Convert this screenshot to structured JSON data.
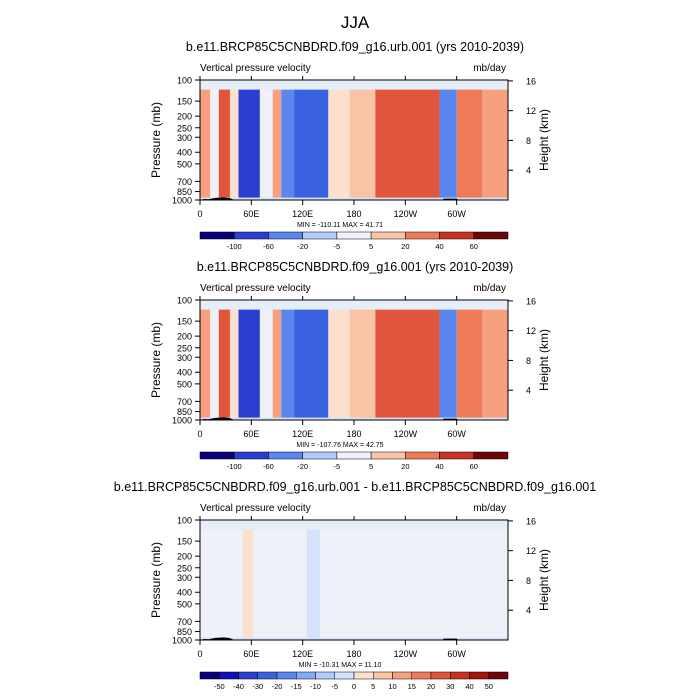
{
  "page_title": "JJA",
  "colors": {
    "palette": [
      "#08007a",
      "#1010b8",
      "#2a3fd0",
      "#3a62e0",
      "#5a86ef",
      "#86aaf5",
      "#b3cbfa",
      "#d4e3fb",
      "#eef2f8",
      "#fbe0ce",
      "#fbc3a5",
      "#f7a07f",
      "#ef7a58",
      "#e0553c",
      "#c8321f",
      "#a3140e",
      "#6e0606"
    ],
    "terrain": "#000000"
  },
  "chart_data": [
    {
      "type": "heatmap",
      "title": "b.e11.BRCP85C5CNBDRD.f09_g16.urb.001 (yrs 2010-2039)",
      "left_string": "Vertical pressure velocity",
      "right_string": "mb/day",
      "ylabel": "Pressure (mb)",
      "ylabel_right": "Height (km)",
      "x_ticks": [
        "0",
        "60E",
        "120E",
        "180",
        "120W",
        "60W"
      ],
      "x_tick_values": [
        0,
        60,
        120,
        180,
        240,
        300
      ],
      "xlim": [
        0,
        360
      ],
      "y_ticks": [
        "100",
        "150",
        "200",
        "250",
        "300",
        "400",
        "500",
        "700",
        "850",
        "1000"
      ],
      "y_tick_values": [
        100,
        150,
        200,
        250,
        300,
        400,
        500,
        700,
        850,
        1000
      ],
      "ylim": [
        1000,
        100
      ],
      "y_scale": "log",
      "height_ticks": [
        "4",
        "8",
        "12",
        "16"
      ],
      "height_tick_values": [
        4,
        8,
        12,
        16
      ],
      "stats": "MIN = -110.11  MAX =  41.71",
      "colorbar_labels": [
        "-100",
        "-60",
        "-20",
        "-5",
        "5",
        "20",
        "40",
        "60"
      ],
      "bands_by_longitude": [
        {
          "lon": [
            0,
            12
          ],
          "value": 8
        },
        {
          "lon": [
            12,
            22
          ],
          "value": -25
        },
        {
          "lon": [
            22,
            35
          ],
          "value": 30
        },
        {
          "lon": [
            35,
            45
          ],
          "value": -10
        },
        {
          "lon": [
            45,
            70
          ],
          "value": -80
        },
        {
          "lon": [
            70,
            85
          ],
          "value": -20
        },
        {
          "lon": [
            85,
            95
          ],
          "value": 5
        },
        {
          "lon": [
            95,
            110
          ],
          "value": -60
        },
        {
          "lon": [
            110,
            150
          ],
          "value": -70
        },
        {
          "lon": [
            150,
            175
          ],
          "value": -10
        },
        {
          "lon": [
            175,
            205
          ],
          "value": 0
        },
        {
          "lon": [
            205,
            280
          ],
          "value": 25
        },
        {
          "lon": [
            280,
            300
          ],
          "value": -60
        },
        {
          "lon": [
            300,
            330
          ],
          "value": 20
        },
        {
          "lon": [
            330,
            360
          ],
          "value": 5
        }
      ]
    },
    {
      "type": "heatmap",
      "title": "b.e11.BRCP85C5CNBDRD.f09_g16.001 (yrs 2010-2039)",
      "left_string": "Vertical pressure velocity",
      "right_string": "mb/day",
      "ylabel": "Pressure (mb)",
      "ylabel_right": "Height (km)",
      "x_ticks": [
        "0",
        "60E",
        "120E",
        "180",
        "120W",
        "60W"
      ],
      "x_tick_values": [
        0,
        60,
        120,
        180,
        240,
        300
      ],
      "xlim": [
        0,
        360
      ],
      "y_ticks": [
        "100",
        "150",
        "200",
        "250",
        "300",
        "400",
        "500",
        "700",
        "850",
        "1000"
      ],
      "y_tick_values": [
        100,
        150,
        200,
        250,
        300,
        400,
        500,
        700,
        850,
        1000
      ],
      "ylim": [
        1000,
        100
      ],
      "y_scale": "log",
      "height_ticks": [
        "4",
        "8",
        "12",
        "16"
      ],
      "height_tick_values": [
        4,
        8,
        12,
        16
      ],
      "stats": "MIN = -107.76  MAX =  42.75",
      "colorbar_labels": [
        "-100",
        "-60",
        "-20",
        "-5",
        "5",
        "20",
        "40",
        "60"
      ],
      "bands_by_longitude": [
        {
          "lon": [
            0,
            12
          ],
          "value": 8
        },
        {
          "lon": [
            12,
            22
          ],
          "value": -25
        },
        {
          "lon": [
            22,
            35
          ],
          "value": 30
        },
        {
          "lon": [
            35,
            45
          ],
          "value": -10
        },
        {
          "lon": [
            45,
            70
          ],
          "value": -80
        },
        {
          "lon": [
            70,
            85
          ],
          "value": -20
        },
        {
          "lon": [
            85,
            95
          ],
          "value": 5
        },
        {
          "lon": [
            95,
            110
          ],
          "value": -60
        },
        {
          "lon": [
            110,
            150
          ],
          "value": -70
        },
        {
          "lon": [
            150,
            175
          ],
          "value": -10
        },
        {
          "lon": [
            175,
            205
          ],
          "value": 0
        },
        {
          "lon": [
            205,
            280
          ],
          "value": 25
        },
        {
          "lon": [
            280,
            300
          ],
          "value": -60
        },
        {
          "lon": [
            300,
            330
          ],
          "value": 20
        },
        {
          "lon": [
            330,
            360
          ],
          "value": 5
        }
      ]
    },
    {
      "type": "heatmap",
      "title": "b.e11.BRCP85C5CNBDRD.f09_g16.urb.001 - b.e11.BRCP85C5CNBDRD.f09_g16.001",
      "left_string": "Vertical pressure velocity",
      "right_string": "mb/day",
      "ylabel": "Pressure (mb)",
      "ylabel_right": "Height (km)",
      "x_ticks": [
        "0",
        "60E",
        "120E",
        "180",
        "120W",
        "60W"
      ],
      "x_tick_values": [
        0,
        60,
        120,
        180,
        240,
        300
      ],
      "xlim": [
        0,
        360
      ],
      "y_ticks": [
        "100",
        "150",
        "200",
        "250",
        "300",
        "400",
        "500",
        "700",
        "850",
        "1000"
      ],
      "y_tick_values": [
        100,
        150,
        200,
        250,
        300,
        400,
        500,
        700,
        850,
        1000
      ],
      "ylim": [
        1000,
        100
      ],
      "y_scale": "log",
      "height_ticks": [
        "4",
        "8",
        "12",
        "16"
      ],
      "height_tick_values": [
        4,
        8,
        12,
        16
      ],
      "stats": "MIN = -10.31  MAX =  11.10",
      "colorbar_labels": [
        "-50",
        "-40",
        "-30",
        "-20",
        "-15",
        "-10",
        "-5",
        "0",
        "5",
        "10",
        "15",
        "20",
        "30",
        "40",
        "50"
      ],
      "bands_by_longitude": [
        {
          "lon": [
            0,
            50
          ],
          "value": -1
        },
        {
          "lon": [
            50,
            62
          ],
          "value": 4
        },
        {
          "lon": [
            62,
            125
          ],
          "value": -2
        },
        {
          "lon": [
            125,
            140
          ],
          "value": -6
        },
        {
          "lon": [
            140,
            180
          ],
          "value": -1
        },
        {
          "lon": [
            180,
            270
          ],
          "value": 1
        },
        {
          "lon": [
            270,
            300
          ],
          "value": -2
        },
        {
          "lon": [
            300,
            360
          ],
          "value": 1
        }
      ]
    }
  ]
}
